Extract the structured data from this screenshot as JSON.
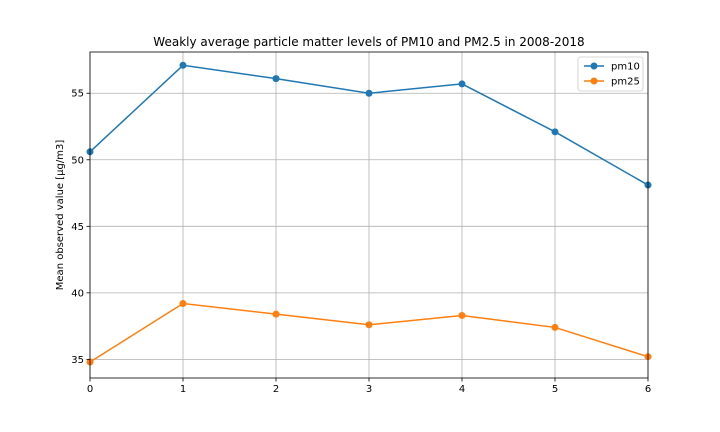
{
  "chart_data": {
    "type": "line",
    "title": "Weakly average particle matter levels of PM10 and PM2.5 in 2008-2018",
    "xlabel": "",
    "ylabel": "Mean observed value [µg/m3]",
    "x": [
      0,
      1,
      2,
      3,
      4,
      5,
      6
    ],
    "xlim": [
      0,
      6
    ],
    "ylim": [
      33.6,
      58.1
    ],
    "xticks": [
      "0",
      "1",
      "2",
      "3",
      "4",
      "5",
      "6"
    ],
    "yticks": [
      35,
      40,
      45,
      50,
      55
    ],
    "grid": true,
    "legend_position": "top-right",
    "series": [
      {
        "name": "pm10",
        "color": "#1f77b4",
        "values": [
          50.6,
          57.1,
          56.1,
          55.0,
          55.7,
          52.1,
          48.1
        ]
      },
      {
        "name": "pm25",
        "color": "#ff7f0e",
        "values": [
          34.8,
          39.2,
          38.4,
          37.6,
          38.3,
          37.4,
          35.2
        ]
      }
    ]
  }
}
